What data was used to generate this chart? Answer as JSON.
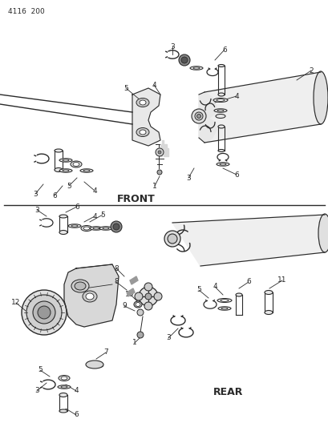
{
  "title": "4116  200",
  "front_label": "FRONT",
  "rear_label": "REAR",
  "bg_color": "#ffffff",
  "line_color": "#2a2a2a",
  "text_color": "#2a2a2a",
  "fig_width": 4.1,
  "fig_height": 5.33,
  "dpi": 100
}
